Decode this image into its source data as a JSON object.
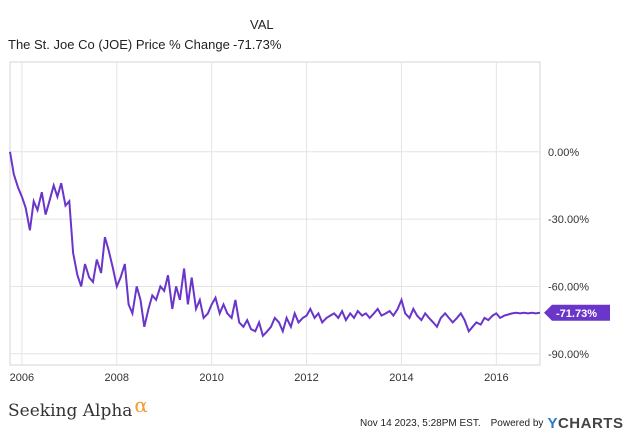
{
  "chart_data": {
    "type": "line",
    "legend_header": "VAL",
    "series": [
      {
        "name": "The St. Joe Co (JOE) Price % Change",
        "value_label": "-71.73%",
        "color": "#6a35c9",
        "x": [
          2005.75,
          2005.83,
          2005.92,
          2006.0,
          2006.08,
          2006.17,
          2006.25,
          2006.33,
          2006.42,
          2006.5,
          2006.58,
          2006.67,
          2006.75,
          2006.83,
          2006.92,
          2007.0,
          2007.08,
          2007.17,
          2007.25,
          2007.33,
          2007.42,
          2007.5,
          2007.58,
          2007.67,
          2007.75,
          2007.83,
          2007.92,
          2008.0,
          2008.08,
          2008.17,
          2008.25,
          2008.33,
          2008.42,
          2008.5,
          2008.58,
          2008.67,
          2008.75,
          2008.83,
          2008.92,
          2009.0,
          2009.08,
          2009.17,
          2009.25,
          2009.33,
          2009.42,
          2009.5,
          2009.58,
          2009.67,
          2009.75,
          2009.83,
          2009.92,
          2010.0,
          2010.08,
          2010.17,
          2010.25,
          2010.33,
          2010.42,
          2010.5,
          2010.58,
          2010.67,
          2010.75,
          2010.83,
          2010.92,
          2011.0,
          2011.08,
          2011.17,
          2011.25,
          2011.33,
          2011.42,
          2011.5,
          2011.58,
          2011.67,
          2011.75,
          2011.83,
          2011.92,
          2012.0,
          2012.08,
          2012.17,
          2012.25,
          2012.33,
          2012.42,
          2012.5,
          2012.58,
          2012.67,
          2012.75,
          2012.83,
          2012.92,
          2013.0,
          2013.08,
          2013.17,
          2013.25,
          2013.33,
          2013.42,
          2013.5,
          2013.58,
          2013.67,
          2013.75,
          2013.83,
          2013.92,
          2014.0,
          2014.08,
          2014.17,
          2014.25,
          2014.33,
          2014.42,
          2014.5,
          2014.58,
          2014.67,
          2014.75,
          2014.83,
          2014.92,
          2015.0,
          2015.08,
          2015.17,
          2015.25,
          2015.33,
          2015.42,
          2015.5,
          2015.58,
          2015.67,
          2015.75,
          2015.83,
          2015.92,
          2016.0,
          2016.08,
          2016.17,
          2016.25,
          2016.33,
          2016.42,
          2016.5,
          2016.58,
          2016.67,
          2016.75,
          2016.83,
          2016.92
        ],
        "y": [
          0,
          -10,
          -16,
          -20,
          -25,
          -35,
          -22,
          -26,
          -18,
          -28,
          -22,
          -15,
          -20,
          -14,
          -24,
          -22,
          -45,
          -55,
          -60,
          -50,
          -56,
          -58,
          -48,
          -54,
          -38,
          -44,
          -52,
          -60,
          -56,
          -50,
          -68,
          -72,
          -60,
          -66,
          -78,
          -70,
          -64,
          -66,
          -60,
          -62,
          -55,
          -70,
          -60,
          -66,
          -52,
          -68,
          -56,
          -70,
          -66,
          -74,
          -72,
          -68,
          -65,
          -72,
          -68,
          -72,
          -74,
          -66,
          -76,
          -78,
          -75,
          -79,
          -80,
          -76,
          -82,
          -80,
          -78,
          -74,
          -76,
          -80,
          -74,
          -78,
          -72,
          -76,
          -74,
          -73,
          -70,
          -74,
          -72,
          -76,
          -74,
          -73,
          -72,
          -74,
          -71,
          -75,
          -72,
          -74,
          -71,
          -73,
          -72,
          -74,
          -72,
          -70,
          -73,
          -72,
          -71,
          -73,
          -70,
          -66,
          -72,
          -74,
          -70,
          -73,
          -75,
          -72,
          -74,
          -76,
          -78,
          -74,
          -72,
          -74,
          -76,
          -74,
          -72,
          -75,
          -80,
          -78,
          -76,
          -77,
          -74,
          -75,
          -73,
          -72,
          -74,
          -73,
          -72.5,
          -72,
          -71.73,
          -72,
          -71.73,
          -72,
          -71.73,
          -72,
          -71.73
        ]
      }
    ],
    "x_ticks": [
      "2006",
      "2008",
      "2010",
      "2012",
      "2014",
      "2016"
    ],
    "x_tick_values": [
      2006,
      2008,
      2010,
      2012,
      2014,
      2016
    ],
    "xlim": [
      2005.75,
      2016.92
    ],
    "y_ticks": [
      "0.00%",
      "-30.00%",
      "-60.00%",
      "-90.00%"
    ],
    "y_tick_values": [
      0,
      -30,
      -60,
      -90
    ],
    "ylim": [
      -95,
      40
    ],
    "grid": "both",
    "last_value_label": "-71.73%",
    "last_value": -71.73
  },
  "footer": {
    "brand": "Seeking Alpha",
    "brand_symbol": "α",
    "timestamp": "Nov 14 2023, 5:28PM EST.",
    "powered_by": "Powered by",
    "logo_y": "Y",
    "logo_rest": "CHARTS"
  }
}
